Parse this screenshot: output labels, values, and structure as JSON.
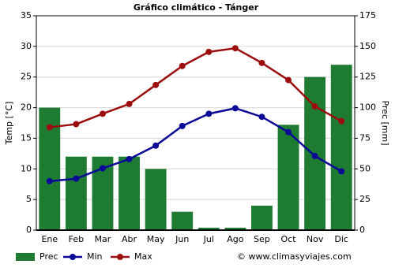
{
  "chart_data": {
    "type": "bar",
    "title": "Gráfico climático - Tánger",
    "ylabel": "Temp [°C]",
    "y2label": "Prec [mm]",
    "credit": "© www.climasyviajes.com",
    "categories": [
      "Ene",
      "Feb",
      "Mar",
      "Abr",
      "May",
      "Jun",
      "Jul",
      "Ago",
      "Sep",
      "Oct",
      "Nov",
      "Dic"
    ],
    "series": [
      {
        "name": "Prec",
        "type": "bar",
        "axis": "y2",
        "color": "#1e7b32",
        "values": [
          100,
          60,
          60,
          60,
          50,
          15,
          2,
          2,
          20,
          86,
          125,
          135
        ]
      },
      {
        "name": "Min",
        "type": "line",
        "color": "#0a0a96",
        "values": [
          8.0,
          8.4,
          10.1,
          11.6,
          13.8,
          17.0,
          19.0,
          19.9,
          18.5,
          16.0,
          12.1,
          9.6
        ]
      },
      {
        "name": "Max",
        "type": "line",
        "color": "#9c0d0d",
        "values": [
          16.8,
          17.3,
          19.0,
          20.6,
          23.7,
          26.8,
          29.1,
          29.7,
          27.3,
          24.5,
          20.2,
          17.8
        ]
      }
    ],
    "ylim": [
      0,
      35
    ],
    "yticks": [
      0,
      5,
      10,
      15,
      20,
      25,
      30,
      35
    ],
    "y2lim": [
      0,
      175
    ],
    "y2ticks": [
      0,
      25,
      50,
      75,
      100,
      125,
      150,
      175
    ],
    "grid": true
  }
}
